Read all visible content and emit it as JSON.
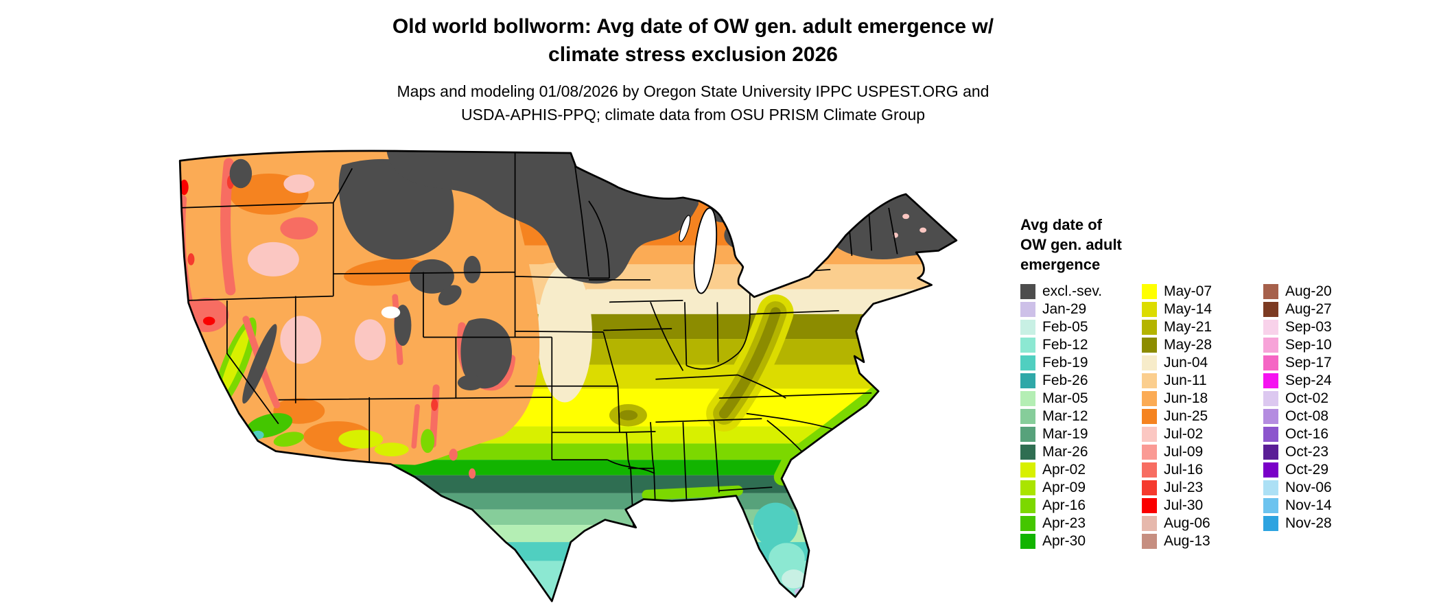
{
  "title": {
    "line1": "Old world bollworm: Avg date of OW gen. adult emergence w/",
    "line2": "climate stress exclusion 2026"
  },
  "subtitle": {
    "line1": "Maps and modeling 01/08/2026 by Oregon State University IPPC USPEST.ORG and",
    "line2": "USDA-APHIS-PPQ; climate data from OSU PRISM Climate Group"
  },
  "legend": {
    "title_line1": "Avg date of",
    "title_line2": "OW gen. adult",
    "title_line3": "emergence",
    "columns": [
      [
        {
          "label": "excl.-sev.",
          "color": "#4d4d4d"
        },
        {
          "label": "Jan-29",
          "color": "#cdc0e8"
        },
        {
          "label": "Feb-05",
          "color": "#c8f0e4"
        },
        {
          "label": "Feb-12",
          "color": "#8ce8d2"
        },
        {
          "label": "Feb-19",
          "color": "#50cfc0"
        },
        {
          "label": "Feb-26",
          "color": "#2fa8a8"
        },
        {
          "label": "Mar-05",
          "color": "#b4eeb4"
        },
        {
          "label": "Mar-12",
          "color": "#86cd9a"
        },
        {
          "label": "Mar-19",
          "color": "#57a27b"
        },
        {
          "label": "Mar-26",
          "color": "#2f6e52"
        },
        {
          "label": "Apr-02",
          "color": "#d8f000"
        },
        {
          "label": "Apr-09",
          "color": "#aae400"
        },
        {
          "label": "Apr-16",
          "color": "#7cd800"
        },
        {
          "label": "Apr-23",
          "color": "#44c600"
        },
        {
          "label": "Apr-30",
          "color": "#12b400"
        }
      ],
      [
        {
          "label": "May-07",
          "color": "#ffff00"
        },
        {
          "label": "May-14",
          "color": "#dcdc00"
        },
        {
          "label": "May-21",
          "color": "#b4b400"
        },
        {
          "label": "May-28",
          "color": "#8c8c00"
        },
        {
          "label": "Jun-04",
          "color": "#f7ecca"
        },
        {
          "label": "Jun-11",
          "color": "#fbce8e"
        },
        {
          "label": "Jun-18",
          "color": "#fbab55"
        },
        {
          "label": "Jun-25",
          "color": "#f58320"
        },
        {
          "label": "Jul-02",
          "color": "#fbc7c2"
        },
        {
          "label": "Jul-09",
          "color": "#fa9a94"
        },
        {
          "label": "Jul-16",
          "color": "#f76d62"
        },
        {
          "label": "Jul-23",
          "color": "#f53a2e"
        },
        {
          "label": "Jul-30",
          "color": "#fa0000"
        },
        {
          "label": "Aug-06",
          "color": "#e6b8ac"
        },
        {
          "label": "Aug-13",
          "color": "#c68e80"
        }
      ],
      [
        {
          "label": "Aug-20",
          "color": "#a6604b"
        },
        {
          "label": "Aug-27",
          "color": "#7c3a22"
        },
        {
          "label": "Sep-03",
          "color": "#f8d2ea"
        },
        {
          "label": "Sep-10",
          "color": "#f7a3d8"
        },
        {
          "label": "Sep-17",
          "color": "#f565c4"
        },
        {
          "label": "Sep-24",
          "color": "#f513f0"
        },
        {
          "label": "Oct-02",
          "color": "#dcc8f0"
        },
        {
          "label": "Oct-08",
          "color": "#b48ce0"
        },
        {
          "label": "Oct-16",
          "color": "#8c55cd"
        },
        {
          "label": "Oct-23",
          "color": "#5a1e96"
        },
        {
          "label": "Oct-29",
          "color": "#7a00c8"
        },
        {
          "label": "Nov-06",
          "color": "#ace0f5"
        },
        {
          "label": "Nov-14",
          "color": "#6cc3ef"
        },
        {
          "label": "Nov-28",
          "color": "#2da3e0"
        }
      ]
    ]
  }
}
